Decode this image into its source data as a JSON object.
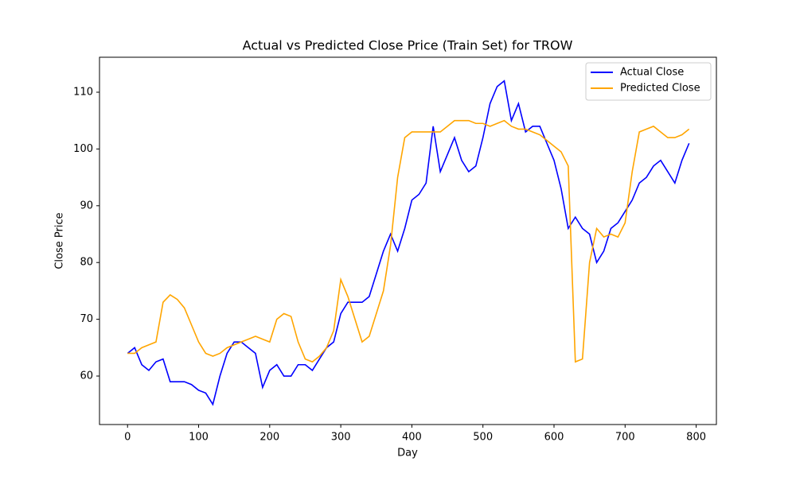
{
  "chart_data": {
    "type": "line",
    "title": "Actual vs Predicted Close Price (Train Set) for TROW",
    "xlabel": "Day",
    "ylabel": "Close Price",
    "x": [
      0,
      10,
      20,
      30,
      40,
      50,
      60,
      70,
      80,
      90,
      100,
      110,
      120,
      130,
      140,
      150,
      160,
      170,
      180,
      190,
      200,
      210,
      220,
      230,
      240,
      250,
      260,
      270,
      280,
      290,
      300,
      310,
      320,
      330,
      340,
      350,
      360,
      370,
      380,
      390,
      400,
      410,
      420,
      430,
      440,
      450,
      460,
      470,
      480,
      490,
      500,
      510,
      520,
      530,
      540,
      550,
      560,
      570,
      580,
      590,
      600,
      610,
      620,
      630,
      640,
      650,
      660,
      670,
      680,
      690,
      700,
      710,
      720,
      730,
      740,
      750,
      760,
      770,
      780,
      790
    ],
    "series": [
      {
        "name": "Actual Close",
        "color": "#0000ff",
        "values": [
          64,
          65,
          62,
          61,
          62.5,
          63,
          59,
          59,
          59,
          58.5,
          57.5,
          57,
          55,
          60,
          64,
          66,
          66,
          65,
          64,
          58,
          61,
          62,
          60,
          60,
          62,
          62,
          61,
          63,
          65,
          66,
          71,
          73,
          73,
          73,
          74,
          78,
          82,
          85,
          82,
          86,
          91,
          92,
          94,
          104,
          96,
          99,
          102,
          98,
          96,
          97,
          102,
          108,
          111,
          112,
          105,
          108,
          103,
          104,
          104,
          101,
          98,
          93,
          86,
          88,
          86,
          85,
          80,
          82,
          86,
          87,
          89,
          91,
          94,
          95,
          97,
          98,
          96,
          94,
          98,
          101
        ]
      },
      {
        "name": "Predicted Close",
        "color": "#ffa500",
        "values": [
          64,
          64,
          65,
          65.5,
          66,
          73,
          74.3,
          73.5,
          72,
          69,
          66,
          64,
          63.5,
          64,
          65,
          65.5,
          66,
          66.5,
          67,
          66.5,
          66,
          70,
          71,
          70.5,
          66,
          63,
          62.5,
          63.5,
          65,
          68,
          77,
          74,
          70,
          66,
          67,
          71,
          75,
          83,
          95,
          102,
          103,
          103,
          103,
          103,
          103,
          104,
          105,
          105,
          105,
          104.5,
          104.5,
          104,
          104.5,
          105,
          104,
          103.5,
          103.5,
          103,
          102.5,
          101.5,
          100.5,
          99.5,
          97,
          62.5,
          63,
          80,
          86,
          84.5,
          85,
          84.5,
          87,
          96,
          103,
          103.5,
          104,
          103,
          102,
          102,
          102.5,
          103.5
        ]
      }
    ],
    "xlim": [
      -39.45,
      828.45
    ],
    "ylim": [
      51.46,
      116.16
    ],
    "xticks": [
      0,
      100,
      200,
      300,
      400,
      500,
      600,
      700,
      800
    ],
    "yticks": [
      60,
      70,
      80,
      90,
      100,
      110
    ],
    "legend": "upper right"
  }
}
